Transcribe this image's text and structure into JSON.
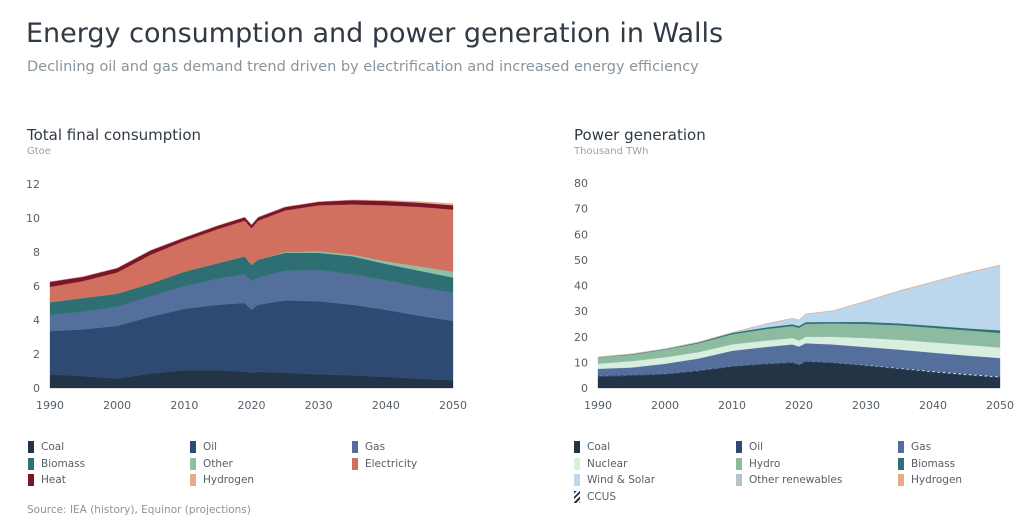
{
  "title": "Energy consumption and power generation in Walls",
  "subtitle": "Declining oil and gas demand trend driven by electrification and increased energy efficiency",
  "source": "Source: IEA (history), Equinor (projections)",
  "chart_data": [
    {
      "type": "area",
      "stacked": true,
      "title": "Total final consumption",
      "unit": "Gtoe",
      "x": [
        1990,
        1995,
        2000,
        2005,
        2010,
        2015,
        2019,
        2020,
        2021,
        2025,
        2030,
        2035,
        2040,
        2045,
        2050
      ],
      "xticks": [
        "1990",
        "2000",
        "2010",
        "2020",
        "2030",
        "2040",
        "2050"
      ],
      "yticks": [
        "0",
        "2",
        "4",
        "6",
        "8",
        "10",
        "12"
      ],
      "ylim": [
        0,
        12
      ],
      "grid": false,
      "legend_position": "bottom",
      "series": [
        {
          "name": "Coal",
          "color": "#243447",
          "values": [
            0.8,
            0.7,
            0.55,
            0.85,
            1.05,
            1.05,
            0.95,
            0.9,
            0.95,
            0.9,
            0.8,
            0.75,
            0.65,
            0.55,
            0.45
          ]
        },
        {
          "name": "Oil",
          "color": "#2f4a72",
          "values": [
            2.55,
            2.75,
            3.1,
            3.35,
            3.6,
            3.85,
            4.05,
            3.7,
            3.95,
            4.25,
            4.3,
            4.15,
            3.95,
            3.7,
            3.5
          ]
        },
        {
          "name": "Gas",
          "color": "#546f9c",
          "values": [
            0.95,
            1.05,
            1.15,
            1.2,
            1.35,
            1.55,
            1.7,
            1.7,
            1.6,
            1.75,
            1.85,
            1.8,
            1.75,
            1.7,
            1.65
          ]
        },
        {
          "name": "Biomass",
          "color": "#2e6f73",
          "values": [
            0.75,
            0.8,
            0.75,
            0.75,
            0.85,
            0.9,
            1.05,
            0.95,
            1.05,
            1.05,
            1.0,
            1.05,
            0.95,
            0.95,
            0.9
          ]
        },
        {
          "name": "Other",
          "color": "#8fbfa5",
          "values": [
            0,
            0,
            0,
            0,
            0,
            0,
            0,
            0,
            0,
            0.05,
            0.1,
            0.1,
            0.15,
            0.25,
            0.35
          ]
        },
        {
          "name": "Electricity",
          "color": "#d2705f",
          "values": [
            0.9,
            1.0,
            1.25,
            1.7,
            1.8,
            2.0,
            2.1,
            2.15,
            2.3,
            2.45,
            2.7,
            2.95,
            3.3,
            3.5,
            3.65
          ]
        },
        {
          "name": "Heat",
          "color": "#7a1628",
          "values": [
            0.3,
            0.25,
            0.25,
            0.25,
            0.2,
            0.2,
            0.2,
            0.2,
            0.2,
            0.2,
            0.2,
            0.25,
            0.25,
            0.25,
            0.25
          ]
        },
        {
          "name": "Hydrogen",
          "color": "#e8a98c",
          "values": [
            0,
            0,
            0,
            0,
            0,
            0,
            0,
            0,
            0,
            0,
            0.01,
            0.02,
            0.04,
            0.07,
            0.1
          ]
        }
      ]
    },
    {
      "type": "area",
      "stacked": true,
      "title": "Power generation",
      "unit": "Thousand TWh",
      "x": [
        1990,
        1995,
        2000,
        2005,
        2010,
        2015,
        2019,
        2020,
        2021,
        2025,
        2030,
        2035,
        2040,
        2045,
        2050
      ],
      "xticks": [
        "1990",
        "2000",
        "2010",
        "2020",
        "2030",
        "2040",
        "2050"
      ],
      "yticks": [
        "0",
        "10",
        "20",
        "30",
        "40",
        "50",
        "60",
        "70",
        "80"
      ],
      "ylim": [
        0,
        80
      ],
      "grid": false,
      "legend_position": "bottom",
      "series": [
        {
          "name": "Coal",
          "color": "#243447",
          "values": [
            4.3,
            4.8,
            5.3,
            6.6,
            8.3,
            9.3,
            9.8,
            9.1,
            10.3,
            9.8,
            8.7,
            7.4,
            6.1,
            5.0,
            4.0
          ]
        },
        {
          "name": "Oil",
          "color": "#2f4a72",
          "values": [
            0.5,
            0.4,
            0.3,
            0.3,
            0.3,
            0.3,
            0.3,
            0.2,
            0.2,
            0.2,
            0.2,
            0.2,
            0.2,
            0.2,
            0.2
          ]
        },
        {
          "name": "CCUS",
          "color": "hatch",
          "values": [
            0,
            0,
            0,
            0,
            0,
            0,
            0,
            0,
            0,
            0,
            0.1,
            0.2,
            0.3,
            0.3,
            0.3
          ]
        },
        {
          "name": "Gas",
          "color": "#546f9c",
          "values": [
            2.7,
            2.8,
            3.9,
            4.6,
            5.9,
            6.4,
            6.9,
            6.9,
            7.0,
            7.0,
            7.0,
            7.2,
            7.2,
            7.2,
            7.2
          ]
        },
        {
          "name": "Nuclear",
          "color": "#d8efe0",
          "values": [
            2.0,
            2.5,
            2.5,
            2.5,
            2.5,
            2.5,
            2.5,
            2.3,
            2.5,
            3.0,
            3.5,
            3.8,
            4.0,
            4.1,
            4.1
          ]
        },
        {
          "name": "Hydro",
          "color": "#8cbba0",
          "values": [
            2.5,
            2.5,
            3.0,
            3.5,
            4.0,
            4.5,
            4.7,
            5.0,
            5.0,
            5.2,
            5.5,
            5.7,
            5.7,
            5.7,
            5.7
          ]
        },
        {
          "name": "Biomass",
          "color": "#2e6f73",
          "values": [
            0.1,
            0.2,
            0.2,
            0.3,
            0.5,
            0.6,
            0.7,
            0.7,
            0.7,
            0.6,
            0.8,
            0.7,
            0.8,
            0.8,
            1.0
          ]
        },
        {
          "name": "Wind & Solar",
          "color": "#bcd6ec",
          "values": [
            0,
            0.1,
            0.1,
            0.1,
            0.1,
            1.3,
            2.2,
            2.2,
            3.1,
            4.2,
            8.0,
            12.6,
            17.0,
            21.5,
            25.2
          ]
        },
        {
          "name": "Other renewables",
          "color": "#b5c3c9",
          "values": [
            0,
            0,
            0,
            0,
            0,
            0.1,
            0.1,
            0.1,
            0.1,
            0.1,
            0.1,
            0.1,
            0.1,
            0.1,
            0.1
          ]
        },
        {
          "name": "Hydrogen",
          "color": "#e8a98c",
          "values": [
            0,
            0,
            0,
            0,
            0,
            0,
            0,
            0,
            0,
            0,
            0.05,
            0.1,
            0.1,
            0.1,
            0.2
          ]
        }
      ],
      "legend_order": [
        "Coal",
        "Oil",
        "Gas",
        "Nuclear",
        "Hydro",
        "Biomass",
        "Wind & Solar",
        "Other renewables",
        "Hydrogen",
        "CCUS"
      ]
    }
  ]
}
